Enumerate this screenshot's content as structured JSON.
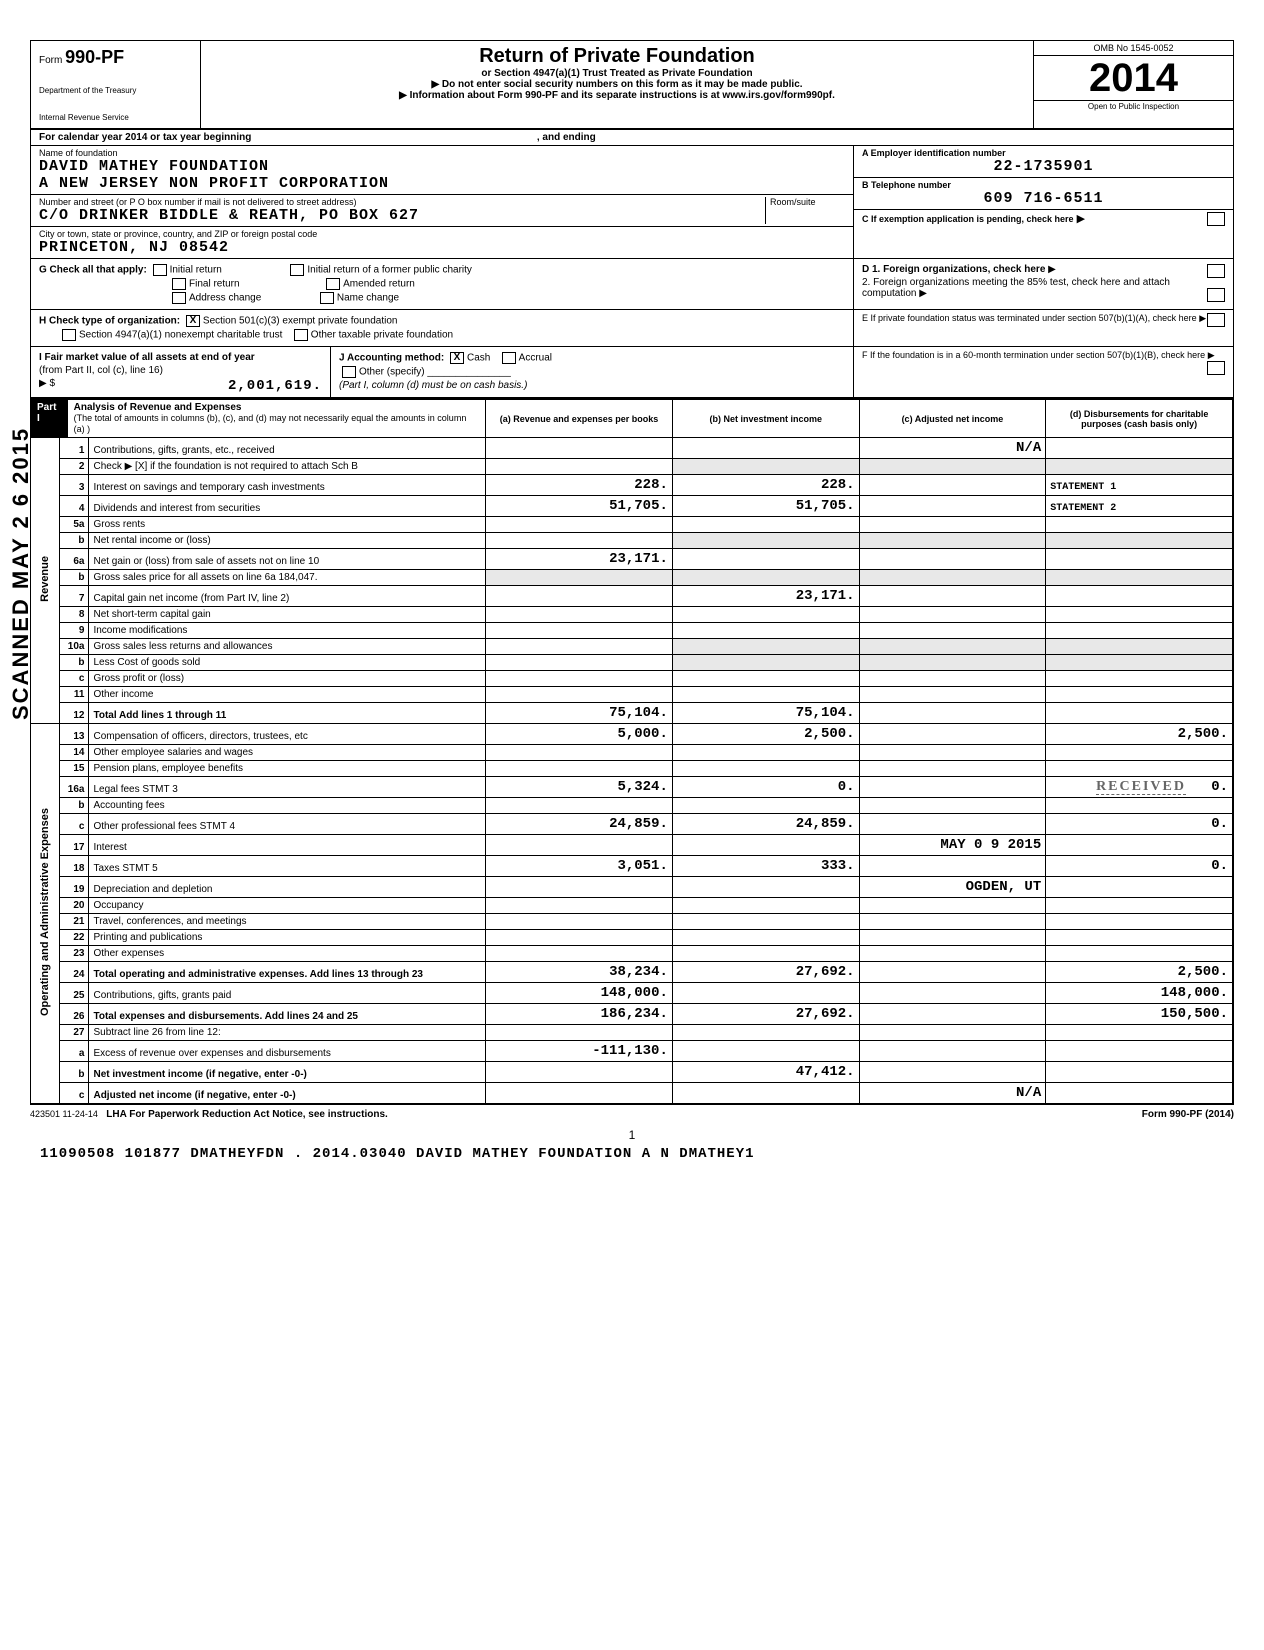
{
  "header": {
    "form_prefix": "Form",
    "form_number": "990-PF",
    "department": "Department of the Treasury",
    "irs": "Internal Revenue Service",
    "title": "Return of Private Foundation",
    "subtitle": "or Section 4947(a)(1) Trust Treated as Private Foundation",
    "warn": "Do not enter social security numbers on this form as it may be made public.",
    "info": "Information about Form 990-PF and its separate instructions is at www.irs.gov/form990pf.",
    "omb": "OMB No 1545-0052",
    "year": "2014",
    "inspection": "Open to Public Inspection"
  },
  "calyear": {
    "text": "For calendar year 2014 or tax year beginning",
    "ending": ", and ending"
  },
  "entity": {
    "name_label": "Name of foundation",
    "name1": "DAVID MATHEY FOUNDATION",
    "name2": "A NEW JERSEY NON PROFIT CORPORATION",
    "addr_label": "Number and street (or P O  box number if mail is not delivered to street address)",
    "room_label": "Room/suite",
    "addr": "C/O DRINKER BIDDLE & REATH, PO BOX 627",
    "city_label": "City or town, state or province, country, and ZIP or foreign postal code",
    "city": "PRINCETON, NJ   08542",
    "ein_label": "A  Employer identification number",
    "ein": "22-1735901",
    "phone_label": "B  Telephone number",
    "phone": "609 716-6511",
    "c_label": "C  If exemption application is pending, check here"
  },
  "checks": {
    "g_label": "G  Check all that apply:",
    "initial": "Initial return",
    "initial_former": "Initial return of a former public charity",
    "final": "Final return",
    "amended": "Amended return",
    "address": "Address change",
    "namechg": "Name change",
    "h_label": "H  Check type of organization:",
    "h_501c3": "Section 501(c)(3) exempt private foundation",
    "h_4947": "Section 4947(a)(1) nonexempt charitable trust",
    "h_other": "Other taxable private foundation",
    "i_label": "I  Fair market value of all assets at end of year",
    "i_sub": "(from Part II, col (c), line 16)",
    "i_value": "2,001,619.",
    "j_label": "J  Accounting method:",
    "j_cash": "Cash",
    "j_accrual": "Accrual",
    "j_other": "Other (specify)",
    "j_note": "(Part I, column (d) must be on cash basis.)",
    "d_label": "D  1. Foreign organizations, check here",
    "d2_label": "2. Foreign organizations meeting the 85% test, check here and attach computation",
    "e_label": "E  If private foundation status was terminated under section 507(b)(1)(A), check here",
    "f_label": "F  If the foundation is in a 60-month termination under section 507(b)(1)(B), check here"
  },
  "part1_header": {
    "label": "Part I",
    "title": "Analysis of Revenue and Expenses",
    "note": "(The total of amounts in columns (b), (c), and (d) may not necessarily equal the amounts in column (a) )",
    "col_a": "(a) Revenue and expenses per books",
    "col_b": "(b) Net investment income",
    "col_c": "(c) Adjusted net income",
    "col_d": "(d) Disbursements for charitable purposes (cash basis only)"
  },
  "side_labels": {
    "revenue": "Revenue",
    "expenses": "Operating and Administrative Expenses",
    "scanned": "SCANNED MAY 2 6 2015"
  },
  "rows": [
    {
      "n": "1",
      "desc": "Contributions, gifts, grants, etc., received",
      "a": "",
      "b": "",
      "c": "N/A",
      "d": ""
    },
    {
      "n": "2",
      "desc": "Check ▶ [X] if the foundation is not required to attach Sch B",
      "a": "",
      "b": "",
      "c": "",
      "d": "",
      "shade_bcd": true
    },
    {
      "n": "3",
      "desc": "Interest on savings and temporary cash investments",
      "a": "228.",
      "b": "228.",
      "c": "",
      "d": "STATEMENT 1"
    },
    {
      "n": "4",
      "desc": "Dividends and interest from securities",
      "a": "51,705.",
      "b": "51,705.",
      "c": "",
      "d": "STATEMENT 2"
    },
    {
      "n": "5a",
      "desc": "Gross rents",
      "a": "",
      "b": "",
      "c": "",
      "d": ""
    },
    {
      "n": "b",
      "desc": "Net rental income or (loss)",
      "a": "",
      "b": "",
      "c": "",
      "d": "",
      "shade_bcd": true
    },
    {
      "n": "6a",
      "desc": "Net gain or (loss) from sale of assets not on line 10",
      "a": "23,171.",
      "b": "",
      "c": "",
      "d": ""
    },
    {
      "n": "b",
      "desc": "Gross sales price for all assets on line 6a        184,047.",
      "a": "",
      "b": "",
      "c": "",
      "d": "",
      "shade_all": true
    },
    {
      "n": "7",
      "desc": "Capital gain net income (from Part IV, line 2)",
      "a": "",
      "b": "23,171.",
      "c": "",
      "d": ""
    },
    {
      "n": "8",
      "desc": "Net short-term capital gain",
      "a": "",
      "b": "",
      "c": "",
      "d": ""
    },
    {
      "n": "9",
      "desc": "Income modifications",
      "a": "",
      "b": "",
      "c": "",
      "d": ""
    },
    {
      "n": "10a",
      "desc": "Gross sales less returns and allowances",
      "a": "",
      "b": "",
      "c": "",
      "d": "",
      "shade_bcd": true
    },
    {
      "n": "b",
      "desc": "Less  Cost of goods sold",
      "a": "",
      "b": "",
      "c": "",
      "d": "",
      "shade_bcd": true
    },
    {
      "n": "c",
      "desc": "Gross profit or (loss)",
      "a": "",
      "b": "",
      "c": "",
      "d": ""
    },
    {
      "n": "11",
      "desc": "Other income",
      "a": "",
      "b": "",
      "c": "",
      "d": ""
    },
    {
      "n": "12",
      "desc": "Total  Add lines 1 through 11",
      "a": "75,104.",
      "b": "75,104.",
      "c": "",
      "d": "",
      "bold": true
    },
    {
      "n": "13",
      "desc": "Compensation of officers, directors, trustees, etc",
      "a": "5,000.",
      "b": "2,500.",
      "c": "",
      "d": "2,500."
    },
    {
      "n": "14",
      "desc": "Other employee salaries and wages",
      "a": "",
      "b": "",
      "c": "",
      "d": ""
    },
    {
      "n": "15",
      "desc": "Pension plans, employee benefits",
      "a": "",
      "b": "",
      "c": "",
      "d": ""
    },
    {
      "n": "16a",
      "desc": "Legal fees                    STMT 3",
      "a": "5,324.",
      "b": "0.",
      "c": "",
      "d": "0.",
      "stamp_d": "RECEIVED"
    },
    {
      "n": "b",
      "desc": "Accounting fees",
      "a": "",
      "b": "",
      "c": "",
      "d": ""
    },
    {
      "n": "c",
      "desc": "Other professional fees       STMT 4",
      "a": "24,859.",
      "b": "24,859.",
      "c": "",
      "d": "0."
    },
    {
      "n": "17",
      "desc": "Interest",
      "a": "",
      "b": "",
      "c": "MAY 0 9 2015",
      "d": ""
    },
    {
      "n": "18",
      "desc": "Taxes                         STMT 5",
      "a": "3,051.",
      "b": "333.",
      "c": "",
      "d": "0."
    },
    {
      "n": "19",
      "desc": "Depreciation and depletion",
      "a": "",
      "b": "",
      "c": "OGDEN, UT",
      "d": ""
    },
    {
      "n": "20",
      "desc": "Occupancy",
      "a": "",
      "b": "",
      "c": "",
      "d": ""
    },
    {
      "n": "21",
      "desc": "Travel, conferences, and meetings",
      "a": "",
      "b": "",
      "c": "",
      "d": ""
    },
    {
      "n": "22",
      "desc": "Printing and publications",
      "a": "",
      "b": "",
      "c": "",
      "d": ""
    },
    {
      "n": "23",
      "desc": "Other expenses",
      "a": "",
      "b": "",
      "c": "",
      "d": ""
    },
    {
      "n": "24",
      "desc": "Total operating and administrative expenses. Add lines 13 through 23",
      "a": "38,234.",
      "b": "27,692.",
      "c": "",
      "d": "2,500.",
      "bold": true
    },
    {
      "n": "25",
      "desc": "Contributions, gifts, grants paid",
      "a": "148,000.",
      "b": "",
      "c": "",
      "d": "148,000."
    },
    {
      "n": "26",
      "desc": "Total expenses and disbursements. Add lines 24 and 25",
      "a": "186,234.",
      "b": "27,692.",
      "c": "",
      "d": "150,500.",
      "bold": true
    },
    {
      "n": "27",
      "desc": "Subtract line 26 from line 12:",
      "a": "",
      "b": "",
      "c": "",
      "d": ""
    },
    {
      "n": "a",
      "desc": "Excess of revenue over expenses and disbursements",
      "a": "-111,130.",
      "b": "",
      "c": "",
      "d": ""
    },
    {
      "n": "b",
      "desc": "Net investment income (if negative, enter -0-)",
      "a": "",
      "b": "47,412.",
      "c": "",
      "d": "",
      "bold": true
    },
    {
      "n": "c",
      "desc": "Adjusted net income (if negative, enter -0-)",
      "a": "",
      "b": "",
      "c": "N/A",
      "d": "",
      "bold": true
    }
  ],
  "footer": {
    "code": "423501 11-24-14",
    "lha": "LHA   For Paperwork Reduction Act Notice, see instructions.",
    "formref": "Form 990-PF (2014)",
    "pagenum": "1",
    "bottom": "11090508 101877 DMATHEYFDN  . 2014.03040 DAVID MATHEY FOUNDATION A N DMATHEY1"
  }
}
